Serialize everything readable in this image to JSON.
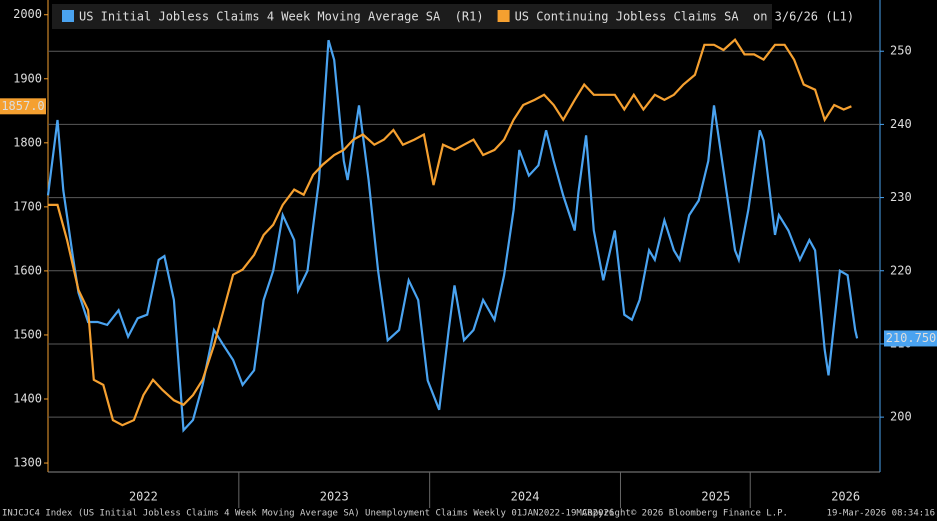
{
  "chart_data": {
    "type": "line",
    "legend": "top-left",
    "grid": true,
    "xlim": [
      2022.0,
      2026.36
    ],
    "xticks": [
      {
        "value": 2022.5,
        "label": "2022"
      },
      {
        "value": 2023.5,
        "label": "2023"
      },
      {
        "value": 2024.5,
        "label": "2024"
      },
      {
        "value": 2025.5,
        "label": "2025"
      },
      {
        "value": 2026.18,
        "label": "2026"
      }
    ],
    "ylim": [
      1286,
      2023
    ],
    "yticks": [
      1300,
      1400,
      1500,
      1600,
      1700,
      1800,
      1900,
      2000
    ],
    "y2lim": [
      192.5,
      257
    ],
    "y2ticks": [
      200,
      210,
      220,
      230,
      240,
      250
    ],
    "footer": {
      "left": "INJCJC4 Index (US Initial Jobless Claims 4 Week Moving Average SA) Unemployment Claims Weekly 01JAN2022-19MAR2026",
      "center": "Copyright© 2026 Bloomberg Finance L.P.",
      "right": "19-Mar-2026 08:34:16"
    },
    "series": [
      {
        "name": "US Initial Jobless Claims 4 Week Moving Average SA  (R1)",
        "color": "#4aa3f0",
        "axis": "y2",
        "last_label": "210.750",
        "x": [
          2022.0,
          2022.05,
          2022.08,
          2022.13,
          2022.16,
          2022.21,
          2022.26,
          2022.31,
          2022.37,
          2022.42,
          2022.47,
          2022.52,
          2022.58,
          2022.61,
          2022.66,
          2022.71,
          2022.76,
          2022.81,
          2022.87,
          2022.92,
          2022.97,
          2023.02,
          2023.08,
          2023.13,
          2023.18,
          2023.23,
          2023.29,
          2023.31,
          2023.36,
          2023.42,
          2023.47,
          2023.5,
          2023.55,
          2023.57,
          2023.63,
          2023.68,
          2023.73,
          2023.78,
          2023.84,
          2023.89,
          2023.94,
          2023.99,
          2024.05,
          2024.1,
          2024.13,
          2024.18,
          2024.23,
          2024.28,
          2024.34,
          2024.39,
          2024.44,
          2024.47,
          2024.52,
          2024.57,
          2024.61,
          2024.65,
          2024.7,
          2024.76,
          2024.78,
          2024.82,
          2024.86,
          2024.91,
          2024.97,
          2025.02,
          2025.06,
          2025.1,
          2025.15,
          2025.18,
          2025.23,
          2025.28,
          2025.31,
          2025.36,
          2025.41,
          2025.46,
          2025.49,
          2025.54,
          2025.6,
          2025.62,
          2025.67,
          2025.73,
          2025.75,
          2025.81,
          2025.83,
          2025.88,
          2025.94,
          2025.99,
          2026.02,
          2026.07,
          2026.09,
          2026.15,
          2026.19,
          2026.23,
          2026.24
        ],
        "values": [
          230.3,
          240.6,
          231,
          222,
          217,
          213,
          213,
          212.6,
          214.6,
          211,
          213.5,
          214,
          221.5,
          222,
          216,
          198.2,
          199.6,
          204.4,
          211.9,
          209.8,
          207.8,
          204.4,
          206.4,
          216,
          220,
          227.6,
          224.2,
          217.3,
          220,
          232.4,
          251.5,
          248.8,
          235,
          232.4,
          242.6,
          232.4,
          220,
          210.5,
          211.9,
          218.7,
          216,
          205,
          201,
          211.9,
          218,
          210.5,
          211.9,
          216,
          213.3,
          219.4,
          228.3,
          236.5,
          233,
          234.4,
          239.2,
          235,
          230.3,
          225.5,
          230.8,
          238.5,
          225.5,
          218.7,
          225.5,
          214,
          213.3,
          216,
          222.8,
          221.5,
          226.9,
          222.8,
          221.5,
          227.6,
          229.6,
          235,
          242.6,
          233.7,
          222.8,
          221.5,
          228.3,
          239.2,
          237.8,
          224.9,
          227.6,
          225.5,
          221.5,
          224.2,
          222.8,
          209.2,
          205.7,
          220,
          219.4,
          211.9,
          210.75
        ]
      },
      {
        "name": "US Continuing Jobless Claims SA  on 3/6/26 (L1)",
        "color": "#f5a030",
        "axis": "y",
        "last_label": "1857.0",
        "x": [
          2022.0,
          2022.05,
          2022.1,
          2022.16,
          2022.21,
          2022.24,
          2022.29,
          2022.34,
          2022.39,
          2022.45,
          2022.5,
          2022.55,
          2022.6,
          2022.66,
          2022.71,
          2022.76,
          2022.81,
          2022.87,
          2022.92,
          2022.97,
          2023.02,
          2023.08,
          2023.13,
          2023.18,
          2023.23,
          2023.29,
          2023.34,
          2023.39,
          2023.44,
          2023.5,
          2023.55,
          2023.6,
          2023.65,
          2023.71,
          2023.76,
          2023.81,
          2023.86,
          2023.92,
          2023.97,
          2024.02,
          2024.07,
          2024.13,
          2024.18,
          2024.23,
          2024.28,
          2024.34,
          2024.39,
          2024.44,
          2024.49,
          2024.55,
          2024.6,
          2024.65,
          2024.7,
          2024.76,
          2024.81,
          2024.86,
          2024.91,
          2024.97,
          2025.02,
          2025.07,
          2025.12,
          2025.18,
          2025.23,
          2025.28,
          2025.33,
          2025.39,
          2025.44,
          2025.49,
          2025.54,
          2025.6,
          2025.65,
          2025.7,
          2025.75,
          2025.81,
          2025.86,
          2025.91,
          2025.96,
          2026.02,
          2026.07,
          2026.12,
          2026.17,
          2026.21
        ],
        "values": [
          1703,
          1703,
          1648,
          1570,
          1539,
          1430,
          1422,
          1367,
          1359,
          1367,
          1406,
          1430,
          1414,
          1398,
          1391,
          1406,
          1430,
          1484,
          1539,
          1594,
          1602,
          1625,
          1656,
          1672,
          1703,
          1727,
          1719,
          1750,
          1766,
          1781,
          1789,
          1805,
          1813,
          1797,
          1805,
          1820,
          1797,
          1805,
          1813,
          1734,
          1797,
          1789,
          1797,
          1805,
          1781,
          1789,
          1805,
          1836,
          1859,
          1867,
          1875,
          1859,
          1836,
          1867,
          1891,
          1875,
          1875,
          1875,
          1852,
          1875,
          1852,
          1875,
          1867,
          1875,
          1891,
          1906,
          1953,
          1953,
          1945,
          1961,
          1938,
          1938,
          1930,
          1953,
          1953,
          1930,
          1891,
          1883,
          1836,
          1859,
          1852,
          1857
        ]
      }
    ]
  }
}
